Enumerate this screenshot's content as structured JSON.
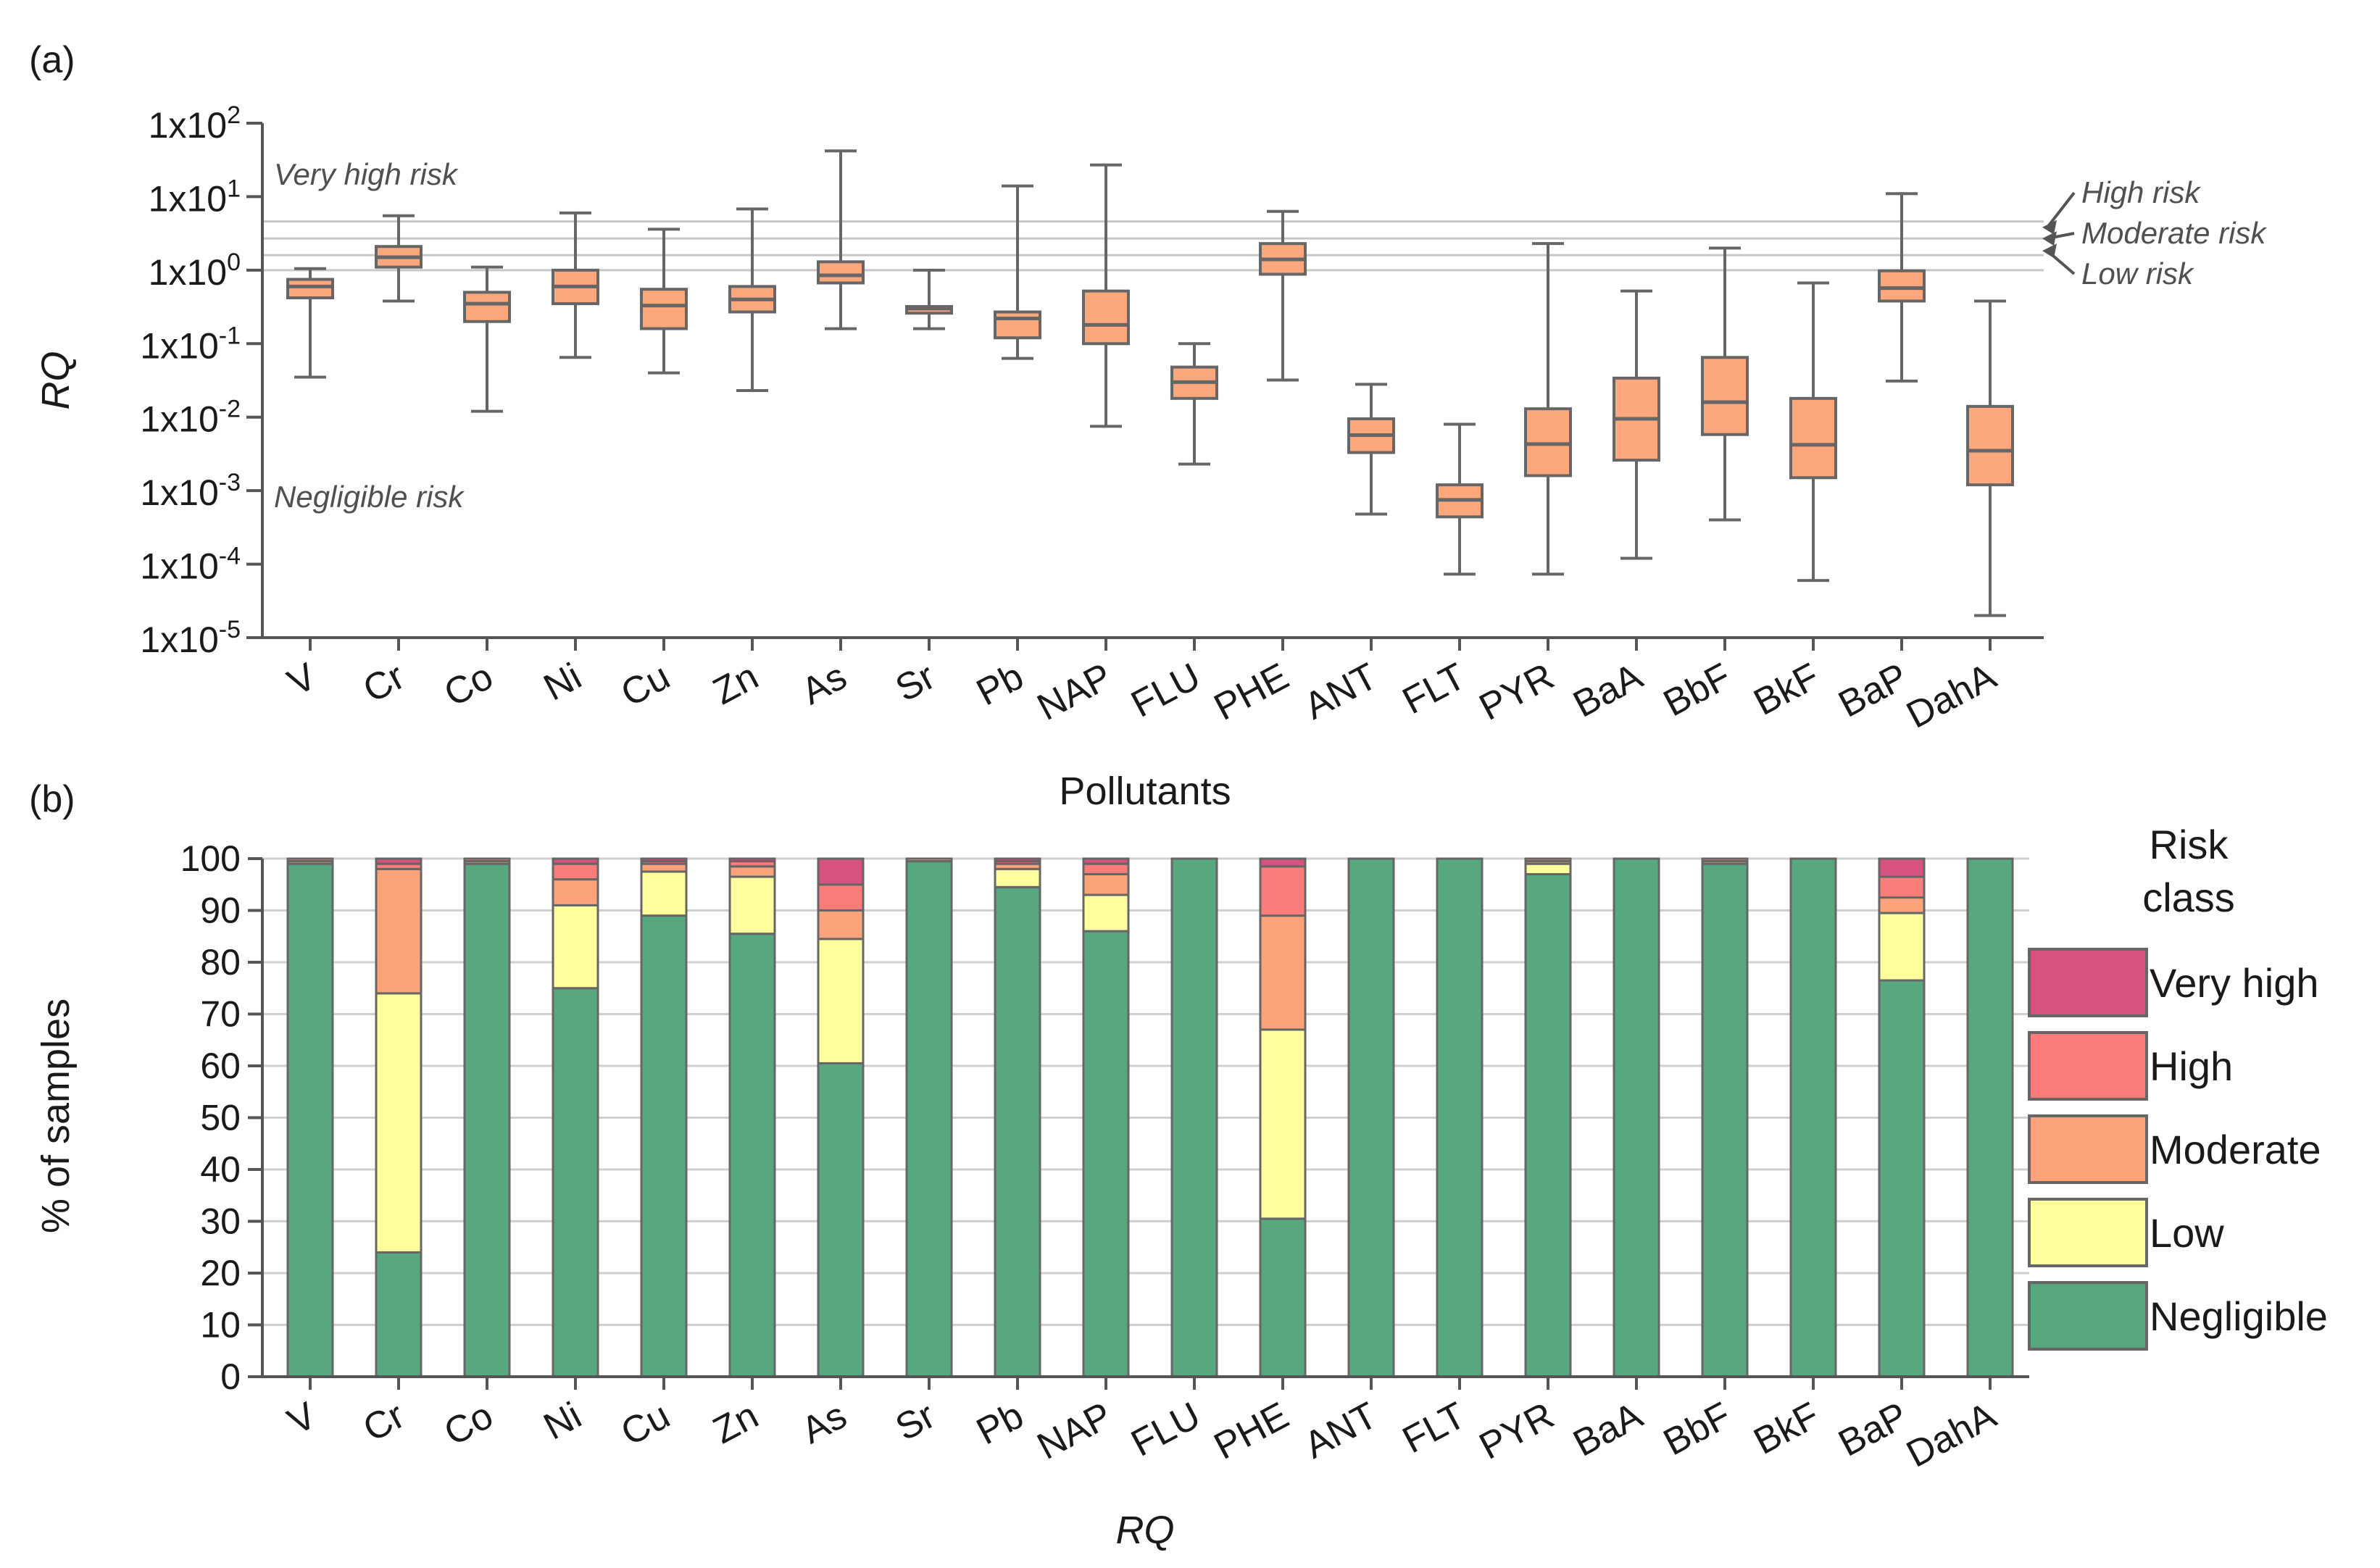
{
  "panel_a_label": "(a)",
  "panel_b_label": "(b)",
  "chart_data": [
    {
      "type": "box",
      "panel": "(a)",
      "xlabel": "Pollutants",
      "ylabel": "RQ",
      "yscale": "log",
      "ylim": [
        1e-05,
        100
      ],
      "y_ticks": [
        {
          "value": 100,
          "mantissa": "1x10",
          "exp": "2"
        },
        {
          "value": 10,
          "mantissa": "1x10",
          "exp": "1"
        },
        {
          "value": 1,
          "mantissa": "1x10",
          "exp": "0"
        },
        {
          "value": 0.1,
          "mantissa": "1x10",
          "exp": "-1"
        },
        {
          "value": 0.01,
          "mantissa": "1x10",
          "exp": "-2"
        },
        {
          "value": 0.001,
          "mantissa": "1x10",
          "exp": "-3"
        },
        {
          "value": 0.0001,
          "mantissa": "1x10",
          "exp": "-4"
        },
        {
          "value": 1e-05,
          "mantissa": "1x10",
          "exp": "-5"
        }
      ],
      "categories": [
        "V",
        "Cr",
        "Co",
        "Ni",
        "Cu",
        "Zn",
        "As",
        "Sr",
        "Pb",
        "NAP",
        "FLU",
        "PHE",
        "ANT",
        "FLT",
        "PYR",
        "BaA",
        "BbF",
        "BkF",
        "BaP",
        "DahA"
      ],
      "boxes": [
        {
          "min": 0.035,
          "q1": 0.42,
          "median": 0.6,
          "q3": 0.75,
          "max": 1.05
        },
        {
          "min": 0.38,
          "q1": 1.1,
          "median": 1.5,
          "q3": 2.1,
          "max": 5.5
        },
        {
          "min": 0.012,
          "q1": 0.2,
          "median": 0.35,
          "q3": 0.5,
          "max": 1.1
        },
        {
          "min": 0.065,
          "q1": 0.35,
          "median": 0.6,
          "q3": 1.0,
          "max": 6.0
        },
        {
          "min": 0.04,
          "q1": 0.16,
          "median": 0.33,
          "q3": 0.55,
          "max": 3.6
        },
        {
          "min": 0.023,
          "q1": 0.27,
          "median": 0.4,
          "q3": 0.6,
          "max": 6.8
        },
        {
          "min": 0.16,
          "q1": 0.67,
          "median": 0.85,
          "q3": 1.3,
          "max": 42
        },
        {
          "min": 0.16,
          "q1": 0.26,
          "median": 0.3,
          "q3": 0.32,
          "max": 1.0
        },
        {
          "min": 0.063,
          "q1": 0.12,
          "median": 0.22,
          "q3": 0.27,
          "max": 14
        },
        {
          "min": 0.0075,
          "q1": 0.1,
          "median": 0.18,
          "q3": 0.52,
          "max": 27
        },
        {
          "min": 0.0023,
          "q1": 0.018,
          "median": 0.03,
          "q3": 0.048,
          "max": 0.1
        },
        {
          "min": 0.032,
          "q1": 0.88,
          "median": 1.4,
          "q3": 2.3,
          "max": 6.3
        },
        {
          "min": 0.00048,
          "q1": 0.0033,
          "median": 0.0057,
          "q3": 0.0095,
          "max": 0.028
        },
        {
          "min": 7.3e-05,
          "q1": 0.00044,
          "median": 0.00075,
          "q3": 0.0012,
          "max": 0.008
        },
        {
          "min": 7.3e-05,
          "q1": 0.0016,
          "median": 0.0043,
          "q3": 0.013,
          "max": 2.3
        },
        {
          "min": 0.00012,
          "q1": 0.0026,
          "median": 0.0095,
          "q3": 0.034,
          "max": 0.52
        },
        {
          "min": 0.0004,
          "q1": 0.0058,
          "median": 0.016,
          "q3": 0.065,
          "max": 2.0
        },
        {
          "min": 6e-05,
          "q1": 0.0015,
          "median": 0.0042,
          "q3": 0.018,
          "max": 0.67
        },
        {
          "min": 0.031,
          "q1": 0.38,
          "median": 0.57,
          "q3": 0.98,
          "max": 11
        },
        {
          "min": 2e-05,
          "q1": 0.0012,
          "median": 0.0035,
          "q3": 0.014,
          "max": 0.38
        }
      ],
      "risk_lines": [
        {
          "value": 4.6,
          "label": "High risk"
        },
        {
          "value": 2.7,
          "label": "Moderate risk"
        },
        {
          "value": 1.6,
          "label": "Low risk"
        },
        {
          "value": 1.0,
          "label": ""
        }
      ],
      "annotations": {
        "very_high": "Very high risk",
        "negligible": "Negligible risk"
      }
    },
    {
      "type": "bar",
      "stacked": true,
      "panel": "(b)",
      "xlabel": "RQ",
      "ylabel": "% of samples",
      "ylim": [
        0,
        100
      ],
      "y_ticks": [
        0,
        10,
        20,
        30,
        40,
        50,
        60,
        70,
        80,
        90,
        100
      ],
      "categories": [
        "V",
        "Cr",
        "Co",
        "Ni",
        "Cu",
        "Zn",
        "As",
        "Sr",
        "Pb",
        "NAP",
        "FLU",
        "PHE",
        "ANT",
        "FLT",
        "PYR",
        "BaA",
        "BbF",
        "BkF",
        "BaP",
        "DahA"
      ],
      "legend_title": [
        "Risk",
        "class"
      ],
      "series": [
        {
          "name": "Negligible",
          "color": "#57a77f",
          "values": [
            99,
            24,
            99,
            75,
            89,
            85.5,
            60.5,
            99.5,
            94.5,
            86,
            100,
            30.5,
            100,
            100,
            97,
            100,
            99,
            100,
            76.5,
            100
          ]
        },
        {
          "name": "Low",
          "color": "#ffff9e",
          "values": [
            0,
            50,
            0,
            16,
            8.5,
            11,
            24,
            0,
            3.5,
            7,
            0,
            36.5,
            0,
            0,
            2,
            0,
            0,
            0,
            13,
            0
          ]
        },
        {
          "name": "Moderate",
          "color": "#fda37c",
          "values": [
            0.5,
            24,
            0.5,
            5,
            1.5,
            2,
            5.5,
            0.5,
            1,
            4,
            0,
            22,
            0,
            0,
            0.5,
            0,
            0.5,
            0,
            3,
            0
          ]
        },
        {
          "name": "High",
          "color": "#fb7d7b",
          "values": [
            0.5,
            1,
            0.5,
            3,
            0.5,
            1,
            5,
            0,
            0.5,
            2,
            0,
            9.5,
            0,
            0,
            0.5,
            0,
            0.5,
            0,
            4,
            0
          ]
        },
        {
          "name": "Very high",
          "color": "#d65380",
          "values": [
            0,
            1,
            0,
            1,
            0.5,
            0.5,
            5,
            0,
            0.5,
            1,
            0,
            1.5,
            0,
            0,
            0,
            0,
            0,
            0,
            3.5,
            0
          ]
        }
      ]
    }
  ]
}
